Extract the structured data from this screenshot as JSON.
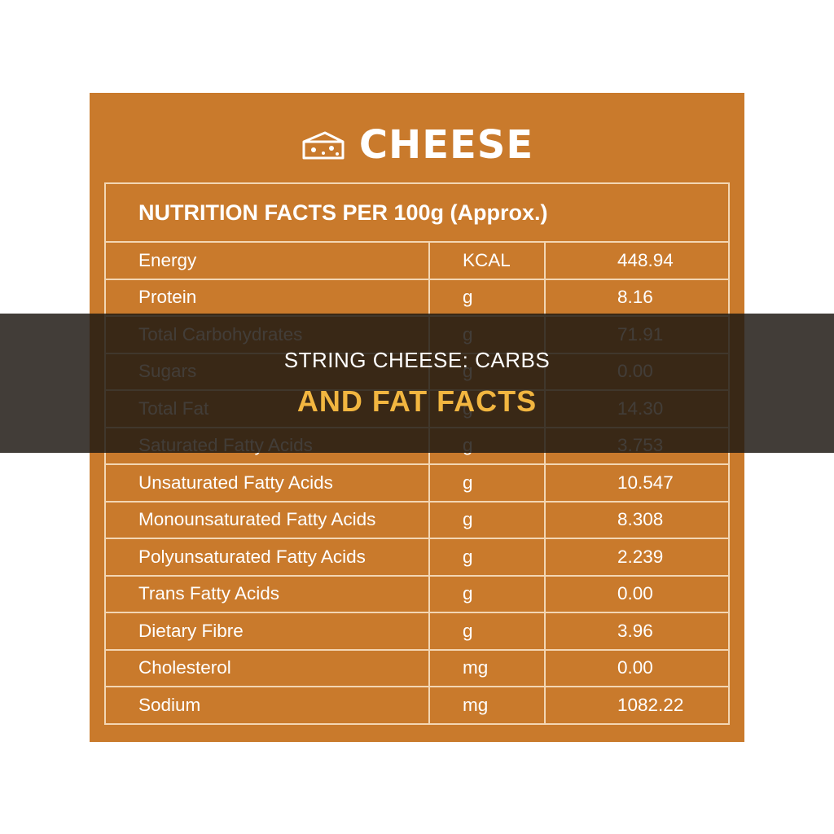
{
  "card": {
    "brand_icon": "cheese-icon",
    "brand_title": "CHEESE",
    "table_title": "NUTRITION FACTS PER 100g (Approx.)",
    "rows": [
      {
        "name": "Energy",
        "unit": "KCAL",
        "value": "448.94"
      },
      {
        "name": "Protein",
        "unit": "g",
        "value": "8.16"
      },
      {
        "name": "Total Carbohydrates",
        "unit": "g",
        "value": "71.91"
      },
      {
        "name": "Sugars",
        "unit": "g",
        "value": "0.00"
      },
      {
        "name": "Total Fat",
        "unit": "g",
        "value": "14.30"
      },
      {
        "name": "Saturated Fatty Acids",
        "unit": "g",
        "value": "3.753"
      },
      {
        "name": "Unsaturated Fatty Acids",
        "unit": "g",
        "value": "10.547"
      },
      {
        "name": "Monounsaturated Fatty Acids",
        "unit": "g",
        "value": "8.308"
      },
      {
        "name": "Polyunsaturated Fatty Acids",
        "unit": "g",
        "value": "2.239"
      },
      {
        "name": "Trans Fatty Acids",
        "unit": "g",
        "value": "0.00"
      },
      {
        "name": "Dietary Fibre",
        "unit": "g",
        "value": "3.96"
      },
      {
        "name": "Cholesterol",
        "unit": "mg",
        "value": "0.00"
      },
      {
        "name": "Sodium",
        "unit": "mg",
        "value": "1082.22"
      }
    ]
  },
  "overlay": {
    "line1": "STRING CHEESE: CARBS",
    "line2": "AND FAT FACTS"
  },
  "colors": {
    "card_background": "#c97a2c",
    "grid_lines": "#f3d6b3",
    "overlay_band": "#1e1812",
    "headline_accent": "#f2b640"
  }
}
